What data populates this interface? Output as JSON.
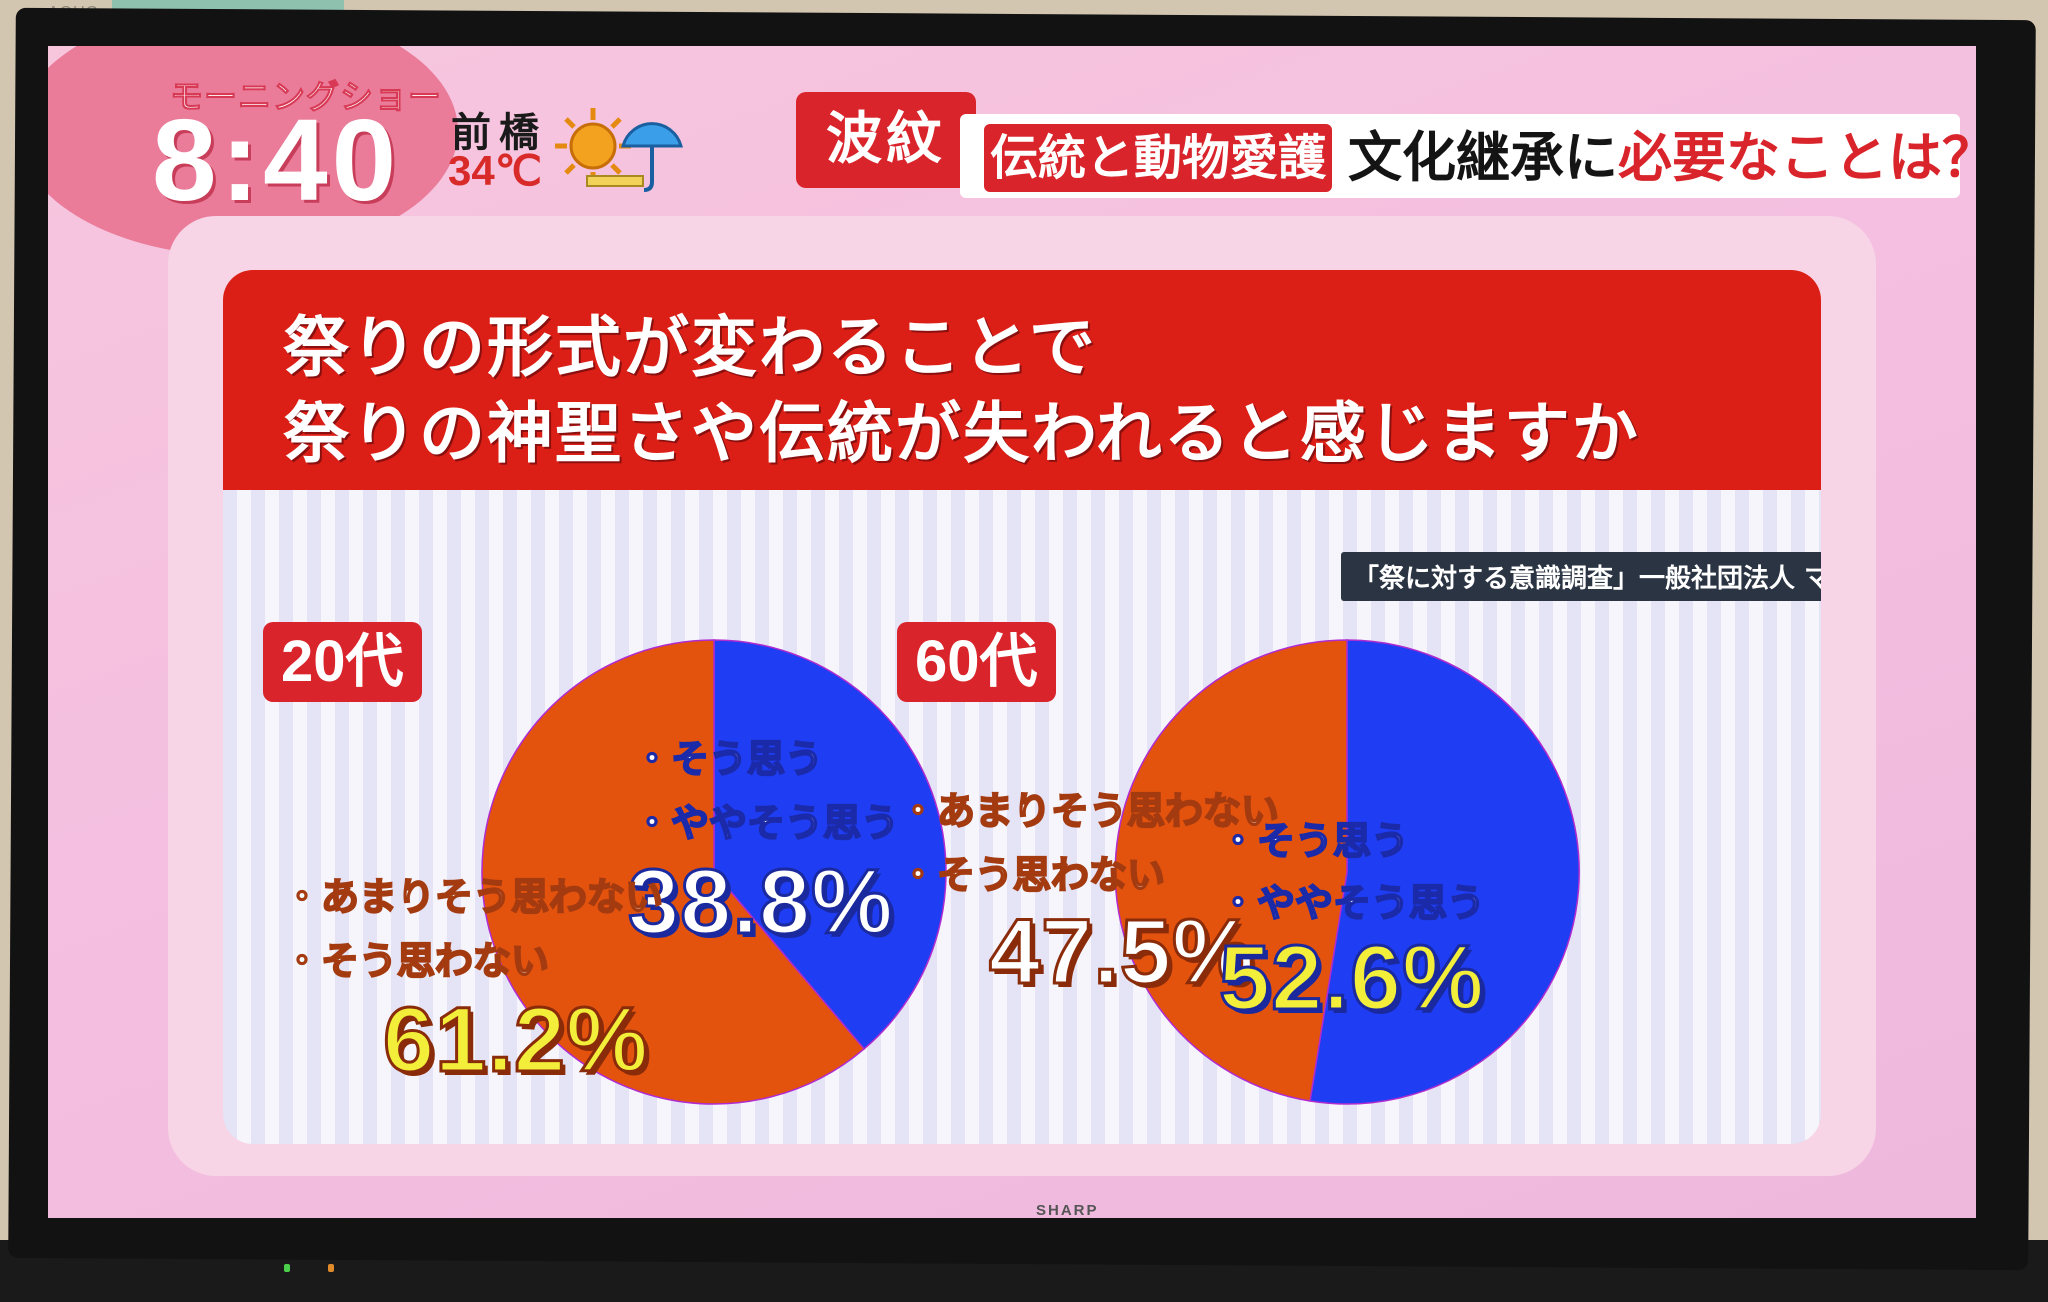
{
  "tv": {
    "brand_top": "AQUO",
    "brand_bottom": "SHARP"
  },
  "header": {
    "show_name": "モーニングショー",
    "clock": "8:40",
    "city": "前橋",
    "temperature": "34℃",
    "weather_icon": "sun-umbrella-icon",
    "corner_tag": "波紋",
    "headline_tag": "伝統と動物愛護",
    "headline_part1": "文化継承に",
    "headline_part2": "必要なことは？"
  },
  "question": {
    "line1": "祭りの形式が変わることで",
    "line2": "祭りの神聖さや伝統が失われると感じますか"
  },
  "source": "「祭に対する意識調査」一般社団法人 マツリズム",
  "colors": {
    "agree": "#1f3df2",
    "disagree": "#e4530e",
    "band": "#dc1f16"
  },
  "chart_data": [
    {
      "type": "pie",
      "title": "20代",
      "slices": [
        {
          "label_lines": [
            "・そう思う",
            "・ややそう思う"
          ],
          "value": 38.8,
          "value_text": "38.8%",
          "color": "#1f3df2"
        },
        {
          "label_lines": [
            "・あまりそう思わない",
            "・そう思わない"
          ],
          "value": 61.2,
          "value_text": "61.2%",
          "color": "#e4530e"
        }
      ]
    },
    {
      "type": "pie",
      "title": "60代",
      "slices": [
        {
          "label_lines": [
            "・そう思う",
            "・ややそう思う"
          ],
          "value": 52.6,
          "value_text": "52.6%",
          "color": "#1f3df2"
        },
        {
          "label_lines": [
            "・あまりそう思わない",
            "・そう思わない"
          ],
          "value": 47.5,
          "value_text": "47.5%",
          "color": "#e4530e"
        }
      ]
    }
  ]
}
